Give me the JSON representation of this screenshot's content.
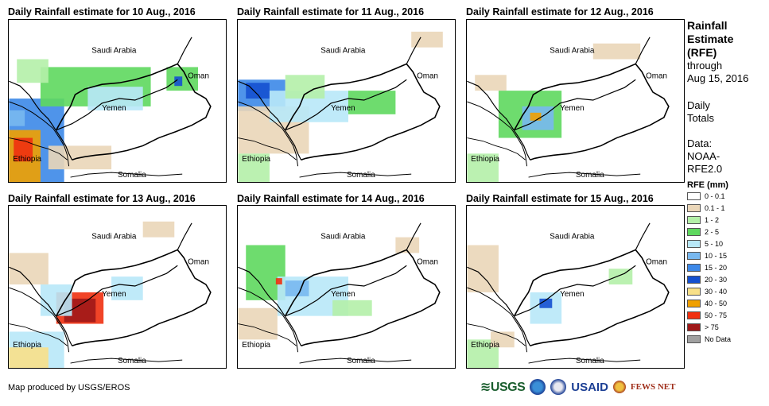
{
  "panels": [
    {
      "title": "Daily Rainfall estimate for 10 Aug., 2016"
    },
    {
      "title": "Daily Rainfall estimate for 11 Aug., 2016"
    },
    {
      "title": "Daily Rainfall estimate for 12 Aug., 2016"
    },
    {
      "title": "Daily Rainfall estimate for 13 Aug., 2016"
    },
    {
      "title": "Daily Rainfall estimate for 14 Aug., 2016"
    },
    {
      "title": "Daily Rainfall estimate for 15 Aug., 2016"
    }
  ],
  "map_labels": {
    "saudi": "Saudi Arabia",
    "oman": "Oman",
    "yemen": "Yemen",
    "ethiopia": "Ethiopia",
    "somalia": "Somalia"
  },
  "sidebar": {
    "title_line1": "Rainfall",
    "title_line2": "Estimate",
    "title_line3": "(RFE)",
    "through": "through",
    "date": "Aug 15, 2016",
    "daily1": "Daily",
    "daily2": "Totals",
    "data1": "Data:",
    "data2": "NOAA-",
    "data3": "RFE2.0"
  },
  "legend": {
    "title": "RFE (mm)",
    "items": [
      {
        "label": "0 - 0.1",
        "color": "#ffffff"
      },
      {
        "label": "0.1 - 1",
        "color": "#ead6b8"
      },
      {
        "label": "1 - 2",
        "color": "#b4f0a8"
      },
      {
        "label": "2 - 5",
        "color": "#5ed85e"
      },
      {
        "label": "5 - 10",
        "color": "#b8e8f8"
      },
      {
        "label": "10 - 15",
        "color": "#78b8f0"
      },
      {
        "label": "15 - 20",
        "color": "#3c88e8"
      },
      {
        "label": "20 - 30",
        "color": "#1450d0"
      },
      {
        "label": "30 - 40",
        "color": "#f8e088"
      },
      {
        "label": "40 - 50",
        "color": "#f0a000"
      },
      {
        "label": "50 - 75",
        "color": "#f03010"
      },
      {
        "label": "> 75",
        "color": "#a01818"
      },
      {
        "label": "No Data",
        "color": "#a0a0a0"
      }
    ]
  },
  "credit": "Map produced by USGS/EROS",
  "logos": {
    "usgs": "≋USGS",
    "usaid": "USAID",
    "fews": "FEWS NET"
  }
}
